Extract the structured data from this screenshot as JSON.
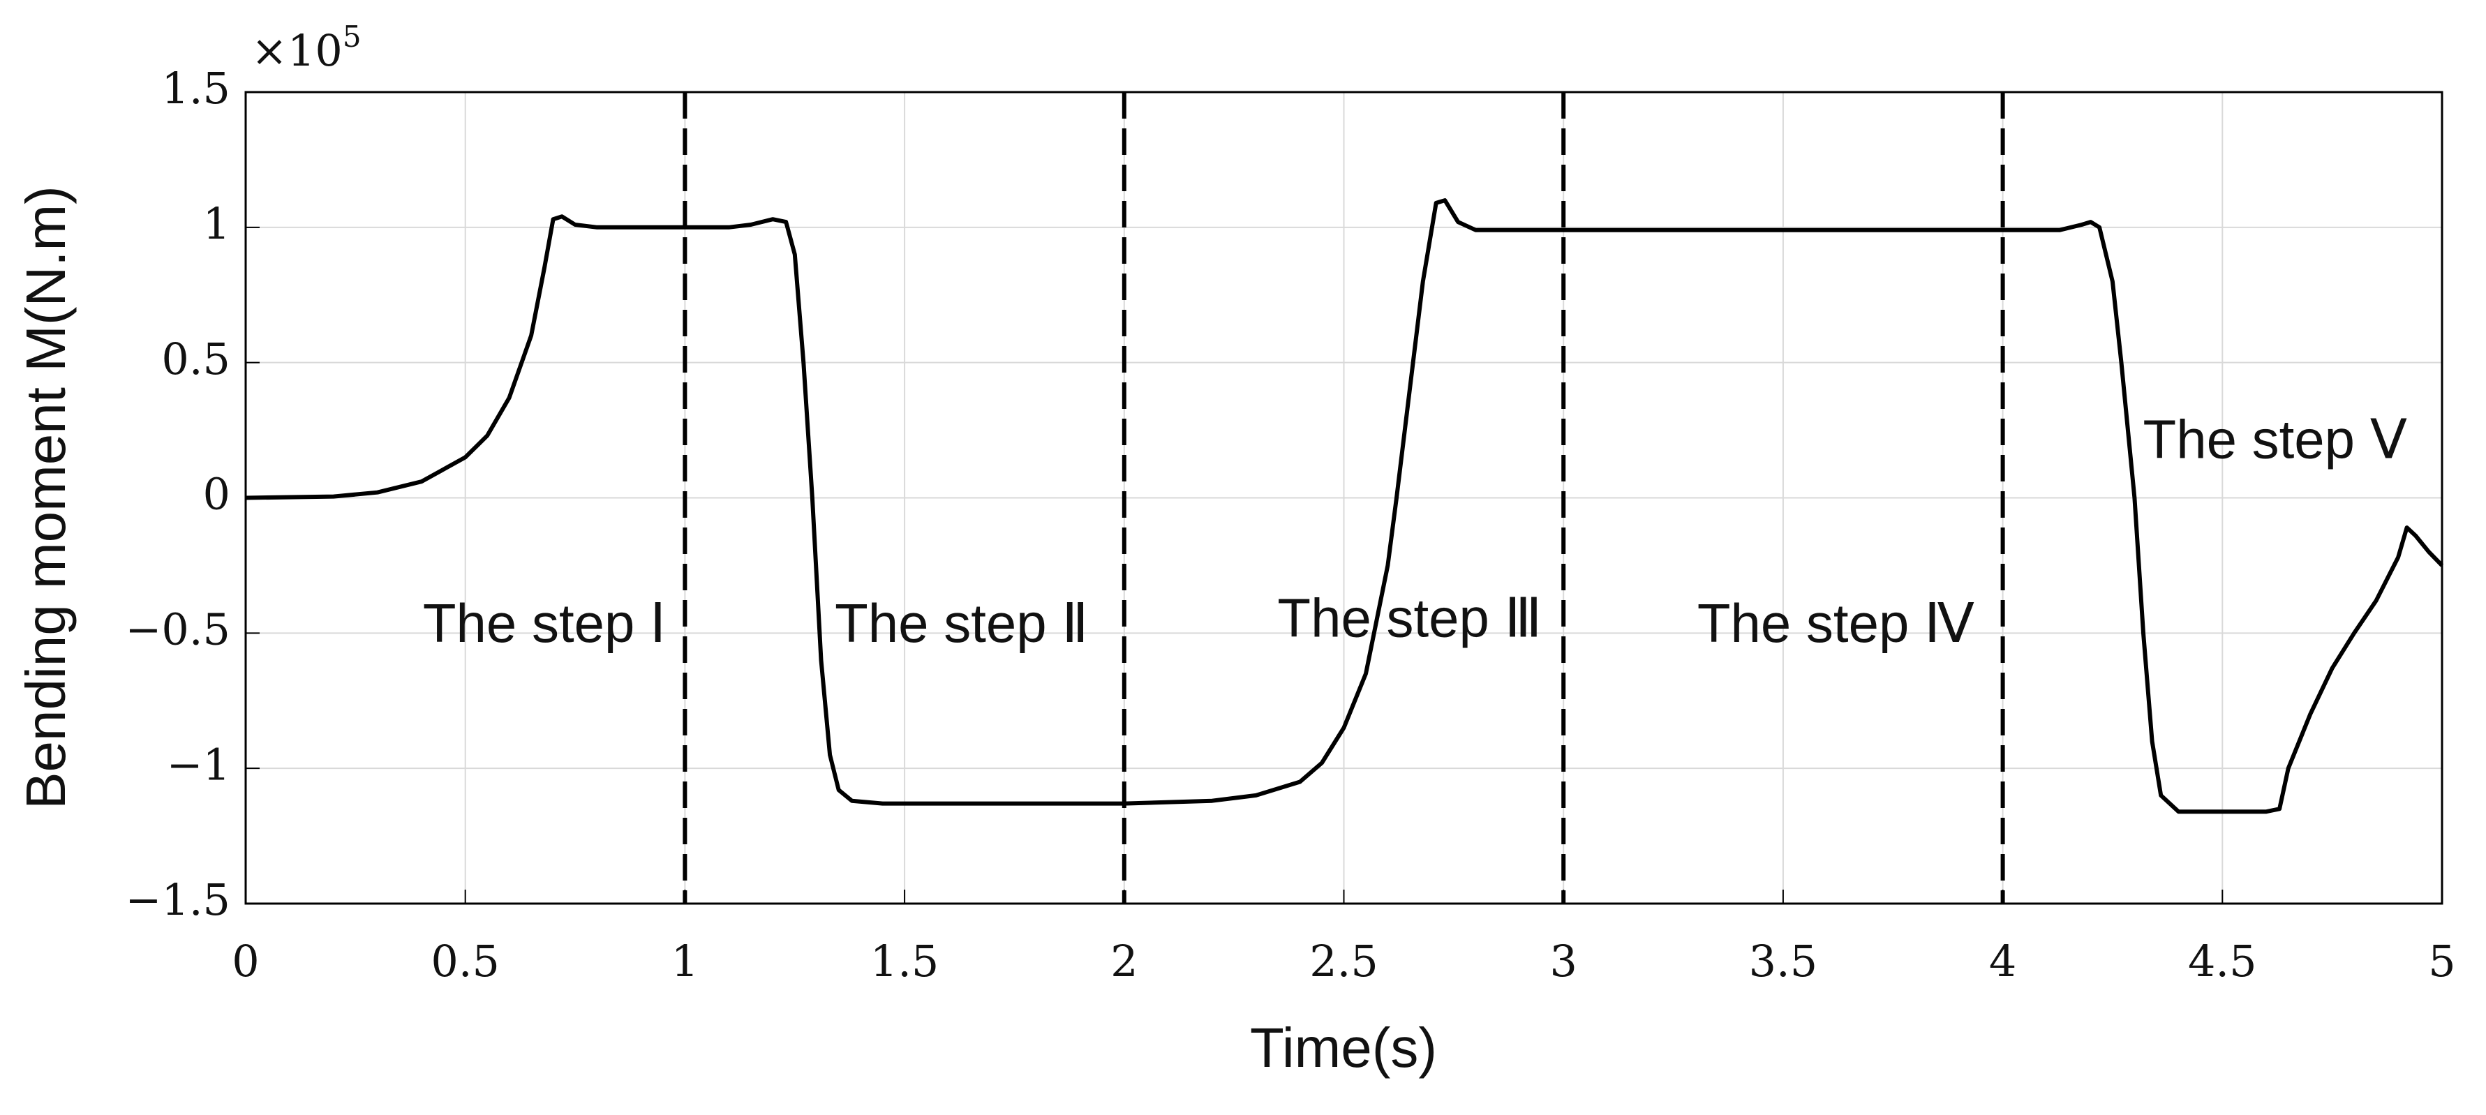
{
  "chart_data": {
    "type": "line",
    "xlabel": "Time(s)",
    "ylabel": "Bending moment M(N.m)",
    "y_multiplier": {
      "base": "×10",
      "exponent": "5"
    },
    "x": [
      0,
      0.2,
      0.3,
      0.4,
      0.5,
      0.55,
      0.6,
      0.65,
      0.68,
      0.7,
      0.72,
      0.75,
      0.8,
      1.0,
      1.1,
      1.15,
      1.2,
      1.23,
      1.25,
      1.27,
      1.29,
      1.3,
      1.31,
      1.33,
      1.35,
      1.38,
      1.45,
      2.0,
      2.2,
      2.3,
      2.4,
      2.45,
      2.5,
      2.55,
      2.6,
      2.62,
      2.65,
      2.68,
      2.71,
      2.73,
      2.76,
      2.8,
      3.0,
      4.0,
      4.13,
      4.18,
      4.2,
      4.22,
      4.25,
      4.27,
      4.3,
      4.32,
      4.34,
      4.36,
      4.4,
      4.5,
      4.6,
      4.63,
      4.65,
      4.7,
      4.75,
      4.8,
      4.85,
      4.9,
      4.92,
      4.94,
      4.97,
      5.0
    ],
    "values": [
      0,
      0.005,
      0.02,
      0.06,
      0.15,
      0.23,
      0.37,
      0.6,
      0.85,
      1.03,
      1.04,
      1.01,
      1.0,
      1.0,
      1.0,
      1.01,
      1.03,
      1.02,
      0.9,
      0.5,
      0,
      -0.3,
      -0.6,
      -0.95,
      -1.08,
      -1.12,
      -1.13,
      -1.13,
      -1.12,
      -1.1,
      -1.05,
      -0.98,
      -0.85,
      -0.65,
      -0.25,
      0,
      0.4,
      0.8,
      1.09,
      1.1,
      1.02,
      0.99,
      0.99,
      0.99,
      0.99,
      1.01,
      1.02,
      1.0,
      0.8,
      0.5,
      0.0,
      -0.5,
      -0.9,
      -1.1,
      -1.16,
      -1.16,
      -1.16,
      -1.15,
      -1.0,
      -0.8,
      -0.63,
      -0.5,
      -0.38,
      -0.22,
      -0.11,
      -0.14,
      -0.2,
      -0.25
    ],
    "color": "#000000",
    "xlim": [
      0,
      5
    ],
    "ylim": [
      -1.5,
      1.5
    ],
    "xticks": [
      0,
      0.5,
      1,
      1.5,
      2,
      2.5,
      3,
      3.5,
      4,
      4.5,
      5
    ],
    "yticks": [
      {
        "value": -1.5,
        "label": "−1.5"
      },
      {
        "value": -1,
        "label": "−1"
      },
      {
        "value": -0.5,
        "label": "−0.5"
      },
      0,
      0.5,
      1,
      1.5
    ],
    "grid": true,
    "vlines": [
      1,
      2,
      3,
      4
    ],
    "annotations": [
      "The step Ⅰ",
      "The step Ⅱ",
      "The step Ⅲ",
      "The step Ⅳ",
      "The step Ⅴ"
    ]
  }
}
